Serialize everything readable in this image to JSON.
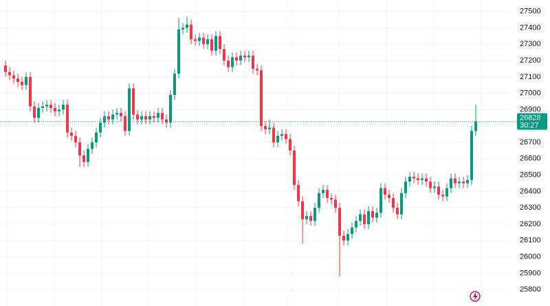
{
  "chart_data": {
    "type": "candlestick",
    "up_color": "#089981",
    "down_color": "#f23645",
    "ylim": [
      25700,
      27570
    ],
    "yticks": [
      25800,
      25900,
      26000,
      26100,
      26200,
      26300,
      26400,
      26500,
      26600,
      26700,
      26800,
      26900,
      27000,
      27100,
      27200,
      27300,
      27400,
      27500
    ],
    "grid": true,
    "last_price": 26828,
    "countdown": "30:27",
    "open": [
      27170,
      27130,
      27110,
      27090,
      27070,
      27050,
      27100,
      26920,
      26850,
      26910,
      26920,
      26930,
      26910,
      26890,
      26900,
      26930,
      26760,
      26740,
      26700,
      26620,
      26580,
      26660,
      26700,
      26760,
      26820,
      26860,
      26840,
      26870,
      26880,
      26860,
      26770,
      27030,
      26870,
      26840,
      26860,
      26840,
      26860,
      26850,
      26880,
      26840,
      26820,
      26990,
      27120,
      27390,
      27400,
      27420,
      27330,
      27320,
      27340,
      27300,
      27330,
      27260,
      27350,
      27270,
      27200,
      27160,
      27220,
      27200,
      27230,
      27220,
      27230,
      27150,
      27140,
      26800,
      26780,
      26790,
      26700,
      26740,
      26750,
      26720,
      26650,
      26440,
      26340,
      26230,
      26250,
      26220,
      26300,
      26390,
      26410,
      26360,
      26350,
      26300,
      26130,
      26100,
      26140,
      26180,
      26220,
      26260,
      26200,
      26280,
      26240,
      26270,
      26420,
      26380,
      26360,
      26300,
      26260,
      26390,
      26460,
      26490,
      26480,
      26470,
      26480,
      26460,
      26420,
      26430,
      26380,
      26370,
      26420,
      26480,
      26450,
      26460,
      26450,
      26470,
      26770
    ],
    "high": [
      27200,
      27160,
      27140,
      27120,
      27100,
      27130,
      27130,
      26950,
      26940,
      26950,
      26960,
      26960,
      26940,
      26930,
      26960,
      26960,
      26790,
      26770,
      26730,
      26650,
      26690,
      26730,
      26790,
      26850,
      26890,
      26890,
      26900,
      26910,
      26910,
      26890,
      27060,
      27060,
      26900,
      26890,
      26890,
      26890,
      26890,
      26910,
      26910,
      26870,
      27020,
      27150,
      27460,
      27430,
      27470,
      27450,
      27360,
      27370,
      27370,
      27360,
      27360,
      27380,
      27380,
      27300,
      27230,
      27250,
      27250,
      27260,
      27260,
      27260,
      27260,
      27180,
      27170,
      26830,
      26840,
      26820,
      26770,
      26780,
      26780,
      26750,
      26680,
      26470,
      26370,
      26280,
      26280,
      26330,
      26420,
      26440,
      26440,
      26390,
      26380,
      26330,
      26160,
      26170,
      26210,
      26250,
      26290,
      26290,
      26310,
      26310,
      26300,
      26450,
      26450,
      26410,
      26390,
      26330,
      26420,
      26490,
      26520,
      26520,
      26510,
      26510,
      26510,
      26490,
      26460,
      26460,
      26410,
      26450,
      26510,
      26510,
      26490,
      26490,
      26500,
      26800,
      26930
    ],
    "low": [
      27100,
      27080,
      27060,
      27040,
      27020,
      27020,
      26890,
      26820,
      26820,
      26880,
      26890,
      26880,
      26860,
      26860,
      26870,
      26730,
      26710,
      26670,
      26550,
      26550,
      26550,
      26630,
      26670,
      26730,
      26790,
      26810,
      26810,
      26840,
      26830,
      26740,
      26740,
      26840,
      26810,
      26810,
      26810,
      26810,
      26820,
      26820,
      26810,
      26790,
      26790,
      26960,
      27090,
      27360,
      27370,
      27300,
      27290,
      27290,
      27270,
      27270,
      27230,
      27230,
      27240,
      27170,
      27130,
      27130,
      27170,
      27170,
      27190,
      27190,
      27120,
      27110,
      26770,
      26750,
      26750,
      26670,
      26670,
      26710,
      26690,
      26620,
      26410,
      26310,
      26080,
      26200,
      26190,
      26190,
      26270,
      26360,
      26330,
      26320,
      26270,
      25880,
      26070,
      26070,
      26110,
      26150,
      26190,
      26170,
      26170,
      26210,
      26210,
      26240,
      26350,
      26330,
      26270,
      26230,
      26230,
      26360,
      26430,
      26450,
      26440,
      26440,
      26430,
      26390,
      26390,
      26350,
      26340,
      26340,
      26390,
      26420,
      26420,
      26420,
      26420,
      26440,
      26740
    ],
    "close": [
      27130,
      27110,
      27090,
      27070,
      27050,
      27100,
      26920,
      26850,
      26910,
      26920,
      26930,
      26910,
      26890,
      26900,
      26930,
      26760,
      26740,
      26700,
      26620,
      26580,
      26660,
      26700,
      26760,
      26820,
      26860,
      26840,
      26870,
      26880,
      26860,
      26770,
      27030,
      26870,
      26840,
      26860,
      26840,
      26860,
      26850,
      26880,
      26840,
      26820,
      26990,
      27120,
      27390,
      27400,
      27420,
      27330,
      27320,
      27340,
      27300,
      27330,
      27260,
      27350,
      27270,
      27200,
      27160,
      27220,
      27200,
      27230,
      27220,
      27230,
      27150,
      27140,
      26800,
      26780,
      26790,
      26700,
      26740,
      26750,
      26720,
      26650,
      26440,
      26340,
      26230,
      26250,
      26220,
      26300,
      26390,
      26410,
      26360,
      26350,
      26300,
      26130,
      26100,
      26140,
      26180,
      26220,
      26260,
      26200,
      26280,
      26240,
      26270,
      26420,
      26380,
      26360,
      26300,
      26260,
      26390,
      26460,
      26490,
      26480,
      26470,
      26480,
      26460,
      26420,
      26430,
      26380,
      26370,
      26420,
      26480,
      26450,
      26460,
      26450,
      26470,
      26770,
      26828
    ]
  }
}
